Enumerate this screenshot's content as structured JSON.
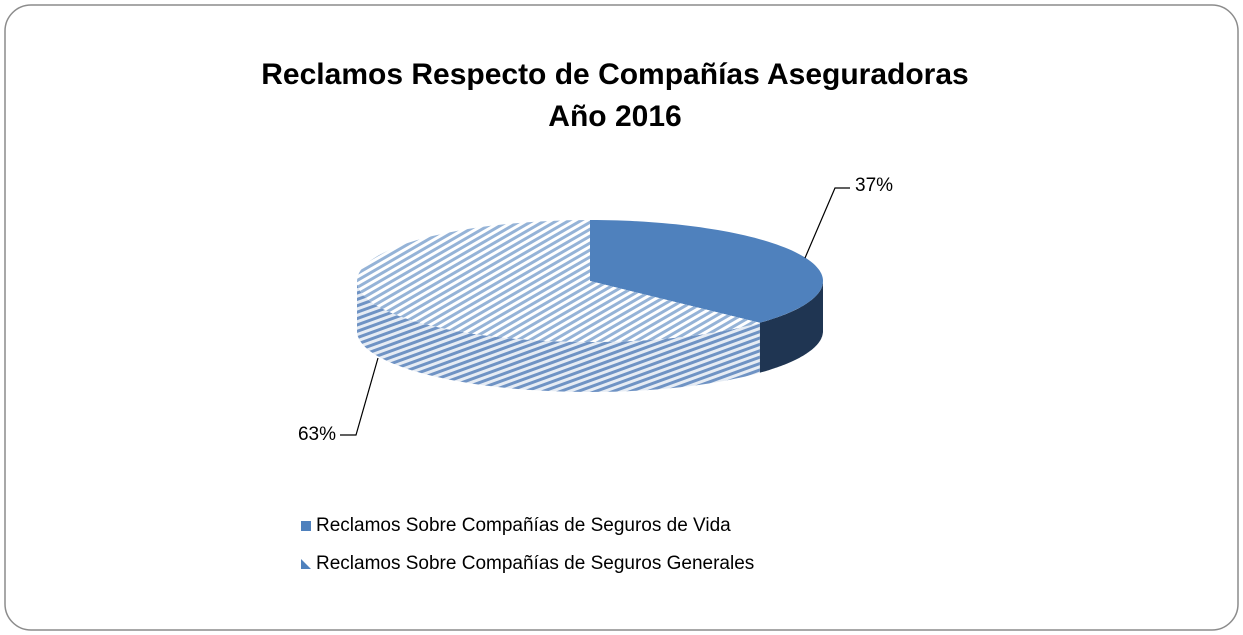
{
  "chart_data": {
    "type": "pie3d",
    "title": [
      "Reclamos Respecto de Compañías Aseguradoras",
      "Año 2016"
    ],
    "categories": [
      "Reclamos Sobre Compañías de Seguros de Vida",
      "Reclamos Sobre Compañías de Seguros Generales"
    ],
    "values": [
      37,
      63
    ],
    "value_labels": [
      "37%",
      "63%"
    ],
    "colors": [
      "#4f81bd",
      "#95b3d7"
    ]
  }
}
